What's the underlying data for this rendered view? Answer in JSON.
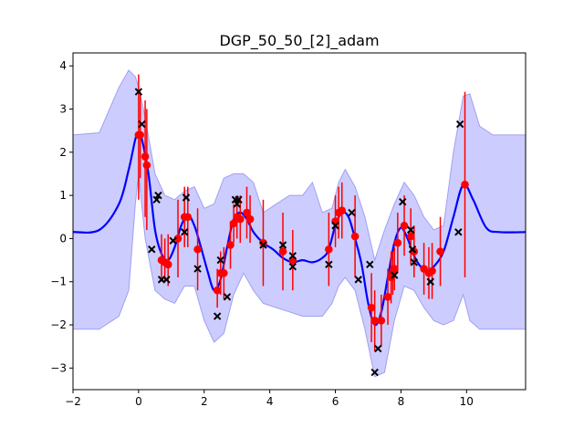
{
  "chart_data": {
    "type": "line",
    "title": "DGP_50_50_[2]_adam",
    "xlabel": "",
    "ylabel": "",
    "xlim": [
      -2,
      11.8
    ],
    "ylim": [
      -3.5,
      4.3
    ],
    "xticks": [
      -2,
      0,
      2,
      4,
      6,
      8,
      10
    ],
    "yticks": [
      -3,
      -2,
      -1,
      0,
      1,
      2,
      3,
      4
    ],
    "grid": false,
    "legend": "none",
    "colors": {
      "mean": "#0000ff",
      "band": "#ccccff",
      "band_edge": "#a0a0f0",
      "predictions": "#ff0000",
      "observations": "#000000"
    },
    "mean_curve": {
      "x": [
        -2.0,
        -1.2,
        -0.6,
        -0.3,
        -0.1,
        0.0,
        0.1,
        0.3,
        0.5,
        0.7,
        0.9,
        1.1,
        1.3,
        1.5,
        1.7,
        1.9,
        2.1,
        2.3,
        2.5,
        2.7,
        2.9,
        3.1,
        3.3,
        3.5,
        3.8,
        4.1,
        4.4,
        4.7,
        5.0,
        5.3,
        5.6,
        5.8,
        6.0,
        6.2,
        6.4,
        6.6,
        6.8,
        7.0,
        7.2,
        7.4,
        7.6,
        7.8,
        8.0,
        8.2,
        8.4,
        8.6,
        8.8,
        9.0,
        9.3,
        9.6,
        9.9,
        10.2,
        10.6,
        11.0,
        11.8
      ],
      "y": [
        0.15,
        0.2,
        0.8,
        1.6,
        2.3,
        2.45,
        2.3,
        1.5,
        0.2,
        -0.35,
        -0.5,
        -0.2,
        0.3,
        0.55,
        0.3,
        -0.2,
        -0.75,
        -1.2,
        -0.95,
        -0.2,
        0.45,
        0.6,
        0.45,
        0.15,
        -0.1,
        -0.25,
        -0.45,
        -0.55,
        -0.5,
        -0.55,
        -0.45,
        -0.25,
        0.3,
        0.6,
        0.5,
        0.0,
        -0.6,
        -1.5,
        -2.0,
        -1.7,
        -0.9,
        -0.1,
        0.25,
        0.0,
        -0.4,
        -0.65,
        -0.75,
        -0.65,
        -0.3,
        0.5,
        1.25,
        0.9,
        0.25,
        0.15,
        0.15
      ]
    },
    "band": {
      "x": [
        -2.0,
        -1.2,
        -0.6,
        -0.3,
        -0.1,
        0.0,
        0.2,
        0.5,
        0.8,
        1.1,
        1.4,
        1.7,
        2.0,
        2.3,
        2.6,
        2.9,
        3.2,
        3.5,
        3.8,
        4.2,
        4.6,
        5.0,
        5.3,
        5.6,
        5.9,
        6.1,
        6.3,
        6.6,
        6.9,
        7.2,
        7.5,
        7.8,
        8.1,
        8.4,
        8.7,
        9.0,
        9.3,
        9.6,
        9.9,
        10.1,
        10.4,
        10.8,
        11.2,
        11.8
      ],
      "upper": [
        2.4,
        2.45,
        3.5,
        3.9,
        3.75,
        3.5,
        2.8,
        1.5,
        1.0,
        0.9,
        1.1,
        1.2,
        0.7,
        0.8,
        1.4,
        1.5,
        1.5,
        1.3,
        0.6,
        0.8,
        1.0,
        1.0,
        1.3,
        0.6,
        0.7,
        1.3,
        1.6,
        1.2,
        0.5,
        -0.5,
        0.2,
        0.8,
        1.3,
        1.0,
        0.5,
        0.2,
        0.3,
        2.0,
        3.3,
        3.35,
        2.6,
        2.4,
        2.4,
        2.4
      ],
      "lower": [
        -2.1,
        -2.1,
        -1.8,
        -1.2,
        0.8,
        1.5,
        0.0,
        -1.2,
        -1.4,
        -1.5,
        -1.1,
        -1.1,
        -1.9,
        -2.4,
        -2.2,
        -1.3,
        -0.8,
        -1.2,
        -1.5,
        -1.6,
        -1.7,
        -1.8,
        -1.8,
        -1.8,
        -1.5,
        -1.1,
        -0.9,
        -1.2,
        -2.1,
        -3.2,
        -3.1,
        -1.9,
        -1.1,
        -1.2,
        -1.6,
        -1.9,
        -2.0,
        -1.9,
        -1.3,
        -1.9,
        -2.1,
        -2.1,
        -2.1,
        -2.1
      ]
    },
    "predictions": [
      {
        "x": 0.0,
        "y": 2.4,
        "lo": 0.9,
        "hi": 3.8
      },
      {
        "x": 0.05,
        "y": 2.4,
        "lo": 1.4,
        "hi": 3.4
      },
      {
        "x": 0.2,
        "y": 1.9,
        "lo": 0.5,
        "hi": 3.2
      },
      {
        "x": 0.25,
        "y": 1.7,
        "lo": 0.2,
        "hi": 3.0
      },
      {
        "x": 0.7,
        "y": -0.5,
        "lo": -1.0,
        "hi": 0.1
      },
      {
        "x": 0.8,
        "y": -0.55,
        "lo": -1.0,
        "hi": 0.0
      },
      {
        "x": 0.9,
        "y": -0.6,
        "lo": -1.1,
        "hi": 0.1
      },
      {
        "x": 1.2,
        "y": 0.0,
        "lo": -0.9,
        "hi": 0.9
      },
      {
        "x": 1.4,
        "y": 0.5,
        "lo": -0.2,
        "hi": 1.2
      },
      {
        "x": 1.5,
        "y": 0.5,
        "lo": -0.2,
        "hi": 1.2
      },
      {
        "x": 1.8,
        "y": -0.25,
        "lo": -1.2,
        "hi": 0.7
      },
      {
        "x": 2.4,
        "y": -1.2,
        "lo": -1.6,
        "hi": -0.7
      },
      {
        "x": 2.5,
        "y": -0.8,
        "lo": -1.3,
        "hi": -0.3
      },
      {
        "x": 2.6,
        "y": -0.8,
        "lo": -1.4,
        "hi": -0.2
      },
      {
        "x": 2.8,
        "y": -0.15,
        "lo": -0.7,
        "hi": 0.4
      },
      {
        "x": 2.9,
        "y": 0.35,
        "lo": -0.1,
        "hi": 0.8
      },
      {
        "x": 3.0,
        "y": 0.5,
        "lo": 0.0,
        "hi": 1.0
      },
      {
        "x": 3.1,
        "y": 0.45,
        "lo": -0.1,
        "hi": 1.0
      },
      {
        "x": 3.3,
        "y": 0.6,
        "lo": 0.0,
        "hi": 1.2
      },
      {
        "x": 3.4,
        "y": 0.45,
        "lo": -0.1,
        "hi": 1.0
      },
      {
        "x": 3.8,
        "y": -0.1,
        "lo": -1.1,
        "hi": 0.9
      },
      {
        "x": 4.4,
        "y": -0.3,
        "lo": -1.2,
        "hi": 0.6
      },
      {
        "x": 4.7,
        "y": -0.5,
        "lo": -1.2,
        "hi": 0.2
      },
      {
        "x": 5.8,
        "y": -0.25,
        "lo": -1.1,
        "hi": 0.6
      },
      {
        "x": 6.0,
        "y": 0.4,
        "lo": -0.2,
        "hi": 1.0
      },
      {
        "x": 6.1,
        "y": 0.6,
        "lo": 0.0,
        "hi": 1.2
      },
      {
        "x": 6.2,
        "y": 0.65,
        "lo": 0.0,
        "hi": 1.3
      },
      {
        "x": 6.6,
        "y": 0.05,
        "lo": -0.9,
        "hi": 1.0
      },
      {
        "x": 7.1,
        "y": -1.6,
        "lo": -2.4,
        "hi": -0.8
      },
      {
        "x": 7.2,
        "y": -1.9,
        "lo": -2.6,
        "hi": -1.2
      },
      {
        "x": 7.4,
        "y": -1.9,
        "lo": -2.5,
        "hi": -1.3
      },
      {
        "x": 7.6,
        "y": -1.35,
        "lo": -2.0,
        "hi": -0.7
      },
      {
        "x": 7.7,
        "y": -0.9,
        "lo": -1.5,
        "hi": -0.3
      },
      {
        "x": 7.75,
        "y": -0.8,
        "lo": -1.3,
        "hi": -0.3
      },
      {
        "x": 7.8,
        "y": -0.7,
        "lo": -1.2,
        "hi": -0.2
      },
      {
        "x": 7.9,
        "y": -0.1,
        "lo": -0.8,
        "hi": 0.6
      },
      {
        "x": 8.1,
        "y": 0.3,
        "lo": -0.4,
        "hi": 1.0
      },
      {
        "x": 8.3,
        "y": 0.05,
        "lo": -0.6,
        "hi": 0.7
      },
      {
        "x": 8.4,
        "y": -0.3,
        "lo": -0.9,
        "hi": 0.3
      },
      {
        "x": 8.7,
        "y": -0.7,
        "lo": -1.3,
        "hi": -0.1
      },
      {
        "x": 8.85,
        "y": -0.8,
        "lo": -1.4,
        "hi": -0.2
      },
      {
        "x": 8.95,
        "y": -0.75,
        "lo": -1.4,
        "hi": -0.1
      },
      {
        "x": 9.2,
        "y": -0.3,
        "lo": -1.1,
        "hi": 0.5
      },
      {
        "x": 9.95,
        "y": 1.25,
        "lo": -0.9,
        "hi": 3.4
      }
    ],
    "observations": [
      {
        "x": 0.0,
        "y": 3.4
      },
      {
        "x": 0.1,
        "y": 2.65
      },
      {
        "x": 0.4,
        "y": -0.25
      },
      {
        "x": 0.55,
        "y": 0.9
      },
      {
        "x": 0.6,
        "y": 1.0
      },
      {
        "x": 0.7,
        "y": -0.95
      },
      {
        "x": 0.85,
        "y": -0.95
      },
      {
        "x": 1.05,
        "y": -0.05
      },
      {
        "x": 1.4,
        "y": 0.15
      },
      {
        "x": 1.45,
        "y": 0.95
      },
      {
        "x": 1.8,
        "y": -0.7
      },
      {
        "x": 2.4,
        "y": -1.8
      },
      {
        "x": 2.5,
        "y": -0.5
      },
      {
        "x": 2.7,
        "y": -1.35
      },
      {
        "x": 2.95,
        "y": 0.9
      },
      {
        "x": 3.0,
        "y": 0.8
      },
      {
        "x": 3.05,
        "y": 0.9
      },
      {
        "x": 3.8,
        "y": -0.15
      },
      {
        "x": 4.4,
        "y": -0.15
      },
      {
        "x": 4.7,
        "y": -0.4
      },
      {
        "x": 4.7,
        "y": -0.65
      },
      {
        "x": 5.8,
        "y": -0.6
      },
      {
        "x": 6.0,
        "y": 0.3
      },
      {
        "x": 6.5,
        "y": 0.6
      },
      {
        "x": 6.7,
        "y": -0.95
      },
      {
        "x": 7.05,
        "y": -0.6
      },
      {
        "x": 7.2,
        "y": -3.1
      },
      {
        "x": 7.3,
        "y": -2.55
      },
      {
        "x": 7.8,
        "y": -0.85
      },
      {
        "x": 8.05,
        "y": 0.85
      },
      {
        "x": 8.3,
        "y": 0.2
      },
      {
        "x": 8.35,
        "y": -0.25
      },
      {
        "x": 8.4,
        "y": -0.55
      },
      {
        "x": 8.9,
        "y": -1.0
      },
      {
        "x": 9.8,
        "y": 2.65
      },
      {
        "x": 9.75,
        "y": 0.15
      }
    ]
  }
}
